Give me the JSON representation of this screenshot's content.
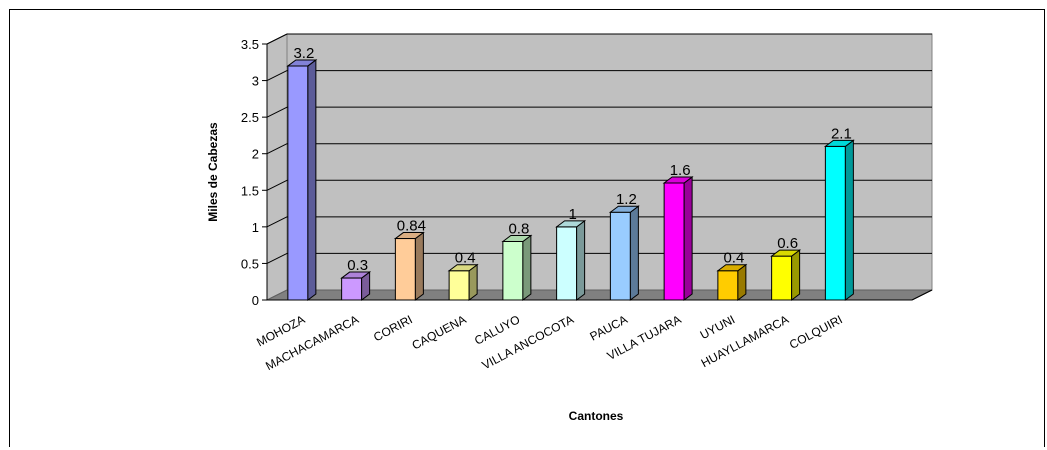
{
  "chart_data": {
    "type": "bar",
    "title": "",
    "xlabel": "Cantones",
    "ylabel": "Miles de Cabezas",
    "ylim": [
      0,
      3.5
    ],
    "yticks": [
      "0",
      "0.5",
      "1",
      "1.5",
      "2",
      "2.5",
      "3",
      "3.5"
    ],
    "grid": true,
    "legend": "none",
    "categories": [
      "MOHOZA",
      "MACHACAMARCA",
      "CORIRI",
      "CAQUENA",
      "CALUYO",
      "VILLA ANCOCOTA",
      "PAUCA",
      "VILLA TUJARA",
      "UYUNI",
      "HUAYLLAMARCA",
      "COLQUIRI"
    ],
    "values": [
      3.2,
      0.3,
      0.84,
      0.4,
      0.8,
      1,
      1.2,
      1.6,
      0.4,
      0.6,
      2.1
    ],
    "data_labels": [
      "3.2",
      "0.3",
      "0.84",
      "0.4",
      "0.8",
      "1",
      "1.2",
      "1.6",
      "0.4",
      "0.6",
      "2.1"
    ],
    "colors": [
      "#9999ff",
      "#cc99ff",
      "#ffcc99",
      "#ffff99",
      "#ccffcc",
      "#ccffff",
      "#99ccff",
      "#ff00ff",
      "#ffcc00",
      "#ffff00",
      "#00ffff"
    ],
    "wall_color": "#c0c0c0",
    "floor_color": "#808080"
  }
}
